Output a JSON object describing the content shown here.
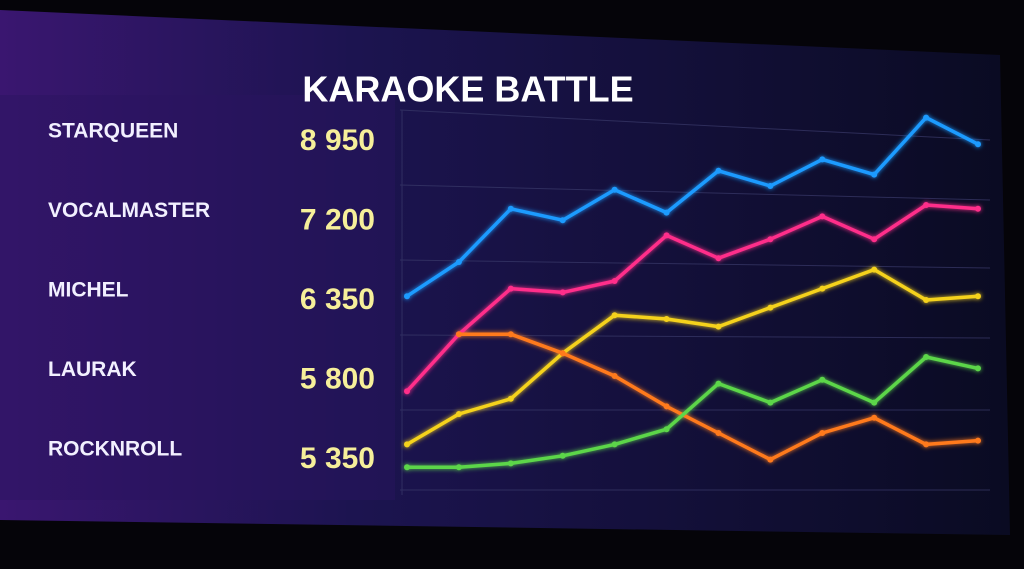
{
  "title": "KARAOKE BATTLE",
  "leaderboard": [
    {
      "name": "STARQUEEN",
      "score": "8 950"
    },
    {
      "name": "VOCALMASTER",
      "score": "7 200"
    },
    {
      "name": "MICHEL",
      "score": "6 350"
    },
    {
      "name": "LAURAK",
      "score": "5 800"
    },
    {
      "name": "ROCKNROLL",
      "score": "5 350"
    }
  ],
  "chart_data": {
    "type": "line",
    "categories": [
      null,
      null,
      null,
      null,
      null,
      null,
      null,
      null,
      null,
      null,
      null,
      null
    ],
    "ylim": [
      0,
      100
    ],
    "series": [
      {
        "color": "#1e9bff",
        "values": [
          51,
          60,
          74,
          71,
          79,
          73,
          84,
          80,
          87,
          83,
          98,
          91
        ]
      },
      {
        "color": "#ff2d8a",
        "values": [
          26,
          41,
          53,
          52,
          55,
          67,
          61,
          66,
          72,
          66,
          75,
          74
        ]
      },
      {
        "color": "#f5d21e",
        "values": [
          12,
          20,
          24,
          36,
          46,
          45,
          43,
          48,
          53,
          58,
          50,
          51
        ]
      },
      {
        "color": "#ff7a1f",
        "values": [
          null,
          41,
          41,
          36,
          30,
          22,
          15,
          8,
          15,
          19,
          12,
          13
        ]
      },
      {
        "color": "#5cd64a",
        "values": [
          6,
          6,
          7,
          9,
          12,
          16,
          28,
          23,
          29,
          23,
          35,
          32
        ]
      }
    ]
  }
}
